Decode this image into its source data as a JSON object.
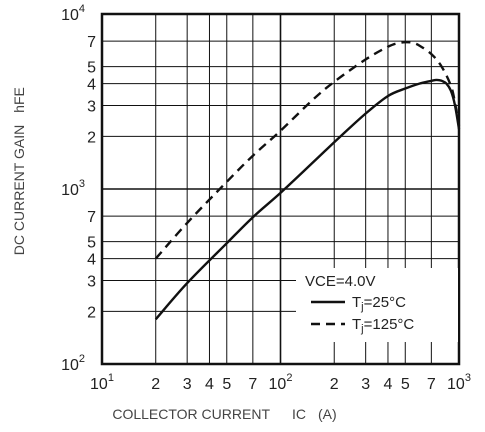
{
  "chart_data": {
    "type": "line",
    "xlabel": "COLLECTOR CURRENT",
    "xlabel_symbol": "IC",
    "xlabel_unit": "(A)",
    "ylabel": "DC CURRENT GAIN",
    "ylabel_symbol": "hFE",
    "x_scale": "log",
    "y_scale": "log",
    "xlim": [
      10,
      1000
    ],
    "ylim": [
      100,
      10000
    ],
    "x_ticks": [
      {
        "value": 10,
        "label": "10",
        "exp": "1"
      },
      {
        "value": 20,
        "label": "2",
        "exp": ""
      },
      {
        "value": 30,
        "label": "3",
        "exp": ""
      },
      {
        "value": 40,
        "label": "4",
        "exp": ""
      },
      {
        "value": 50,
        "label": "5",
        "exp": ""
      },
      {
        "value": 70,
        "label": "7",
        "exp": ""
      },
      {
        "value": 100,
        "label": "10",
        "exp": "2"
      },
      {
        "value": 200,
        "label": "2",
        "exp": ""
      },
      {
        "value": 300,
        "label": "3",
        "exp": ""
      },
      {
        "value": 400,
        "label": "4",
        "exp": ""
      },
      {
        "value": 500,
        "label": "5",
        "exp": ""
      },
      {
        "value": 700,
        "label": "7",
        "exp": ""
      },
      {
        "value": 1000,
        "label": "10",
        "exp": "3"
      }
    ],
    "y_ticks": [
      {
        "value": 100,
        "label": "10",
        "exp": "2"
      },
      {
        "value": 200,
        "label": "2",
        "exp": ""
      },
      {
        "value": 300,
        "label": "3",
        "exp": ""
      },
      {
        "value": 400,
        "label": "4",
        "exp": ""
      },
      {
        "value": 500,
        "label": "5",
        "exp": ""
      },
      {
        "value": 700,
        "label": "7",
        "exp": ""
      },
      {
        "value": 1000,
        "label": "10",
        "exp": "3"
      },
      {
        "value": 2000,
        "label": "2",
        "exp": ""
      },
      {
        "value": 3000,
        "label": "3",
        "exp": ""
      },
      {
        "value": 4000,
        "label": "4",
        "exp": ""
      },
      {
        "value": 5000,
        "label": "5",
        "exp": ""
      },
      {
        "value": 7000,
        "label": "7",
        "exp": ""
      },
      {
        "value": 10000,
        "label": "10",
        "exp": "4"
      }
    ],
    "grid": true,
    "legend": {
      "title": "VCE=4.0V",
      "placement": "bottom-right",
      "entries": [
        {
          "main": "T",
          "sub": "j",
          "rest": "=25°C",
          "dash": "solid"
        },
        {
          "main": "T",
          "sub": "j",
          "rest": "=125°C",
          "dash": "dashed"
        }
      ]
    },
    "series": [
      {
        "dash": "solid",
        "x": [
          20,
          30,
          50,
          70,
          100,
          150,
          200,
          300,
          400,
          500,
          600,
          700,
          750,
          800,
          850,
          900,
          950,
          1000
        ],
        "y": [
          180,
          290,
          490,
          690,
          950,
          1400,
          1850,
          2700,
          3400,
          3750,
          4000,
          4150,
          4200,
          4150,
          4000,
          3650,
          3000,
          2200
        ]
      },
      {
        "dash": "dashed",
        "x": [
          20,
          30,
          50,
          70,
          100,
          150,
          200,
          300,
          400,
          450,
          500,
          550,
          600,
          700,
          800,
          900,
          950,
          1000
        ],
        "y": [
          400,
          640,
          1100,
          1550,
          2150,
          3200,
          4100,
          5500,
          6500,
          6800,
          6900,
          6850,
          6600,
          5900,
          5000,
          3900,
          3100,
          2300
        ]
      }
    ]
  },
  "colors": {
    "line": "#111111",
    "grid": "#111111",
    "text": "#222222",
    "axis_label": "#444444"
  }
}
